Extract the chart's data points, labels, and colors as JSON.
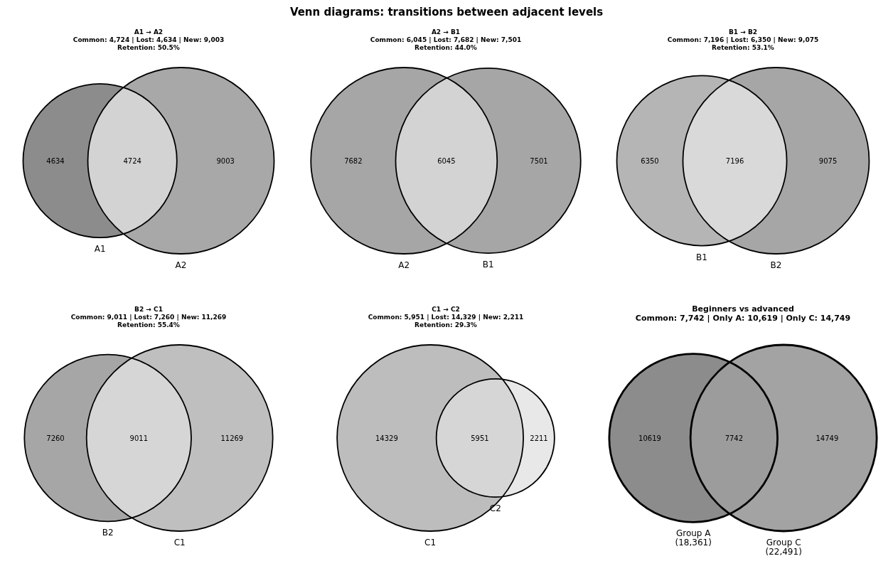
{
  "chart_data": [
    {
      "type": "other",
      "title": "A1 → A2",
      "subtitle": "Common: 4,724 | Lost: 4,634 | New: 9,003\nRetention: 50.5%",
      "annotations": [
        "Venn diagrams: transitions between adjacent levels"
      ],
      "categories": [
        "A1",
        null,
        "A2"
      ],
      "values": [
        4634,
        4724,
        9003
      ],
      "colors": [
        "#8c8c8c",
        "#d3d3d3",
        "#a8a8a8"
      ],
      "data_labels": true
    },
    {
      "type": "other",
      "title": "A2 → B1",
      "subtitle": "Common: 6,045 | Lost: 7,682 | New: 7,501\nRetention: 44.0%",
      "categories": [
        "A2",
        null,
        "B1"
      ],
      "values": [
        7682,
        6045,
        7501
      ],
      "colors": [
        "#a6a6a6",
        "#d3d3d3",
        "#a6a6a6"
      ],
      "data_labels": true
    },
    {
      "type": "other",
      "title": "B1 → B2",
      "subtitle": "Common: 7,196 | Lost: 6,350 | New: 9,075\nRetention: 53.1%",
      "categories": [
        "B1",
        null,
        "B2"
      ],
      "values": [
        6350,
        7196,
        9075
      ],
      "colors": [
        "#b5b5b5",
        "#d9d9d9",
        "#a6a6a6"
      ],
      "data_labels": true
    },
    {
      "type": "other",
      "title": "B2 → C1",
      "subtitle": "Common: 9,011 | Lost: 7,260 | New: 11,269\nRetention: 55.4%",
      "categories": [
        "B2",
        null,
        "C1"
      ],
      "values": [
        7260,
        9011,
        11269
      ],
      "colors": [
        "#a6a6a6",
        "#d6d6d6",
        "#bfbfbf"
      ],
      "data_labels": true
    },
    {
      "type": "other",
      "title": "C1 → C2",
      "subtitle": "Common: 5,951 | Lost: 14,329 | New: 2,211\nRetention: 29.3%",
      "categories": [
        "C1",
        null,
        "C2"
      ],
      "values": [
        14329,
        5951,
        2211
      ],
      "colors": [
        "#bdbdbd",
        "#d6d6d6",
        "#e8e8e8"
      ],
      "data_labels": true
    },
    {
      "type": "other",
      "title": "Beginners vs advanced",
      "subtitle": "Common: 7,742 | Only A: 10,619 | Only C: 14,749",
      "categories": [
        "Group A\n(18,361)",
        null,
        "Group C\n(22,491)"
      ],
      "values": [
        10619,
        7742,
        14749
      ],
      "colors": [
        "#8c8c8c",
        "#9c9c9c",
        "#a3a3a3"
      ],
      "data_labels": true
    }
  ]
}
